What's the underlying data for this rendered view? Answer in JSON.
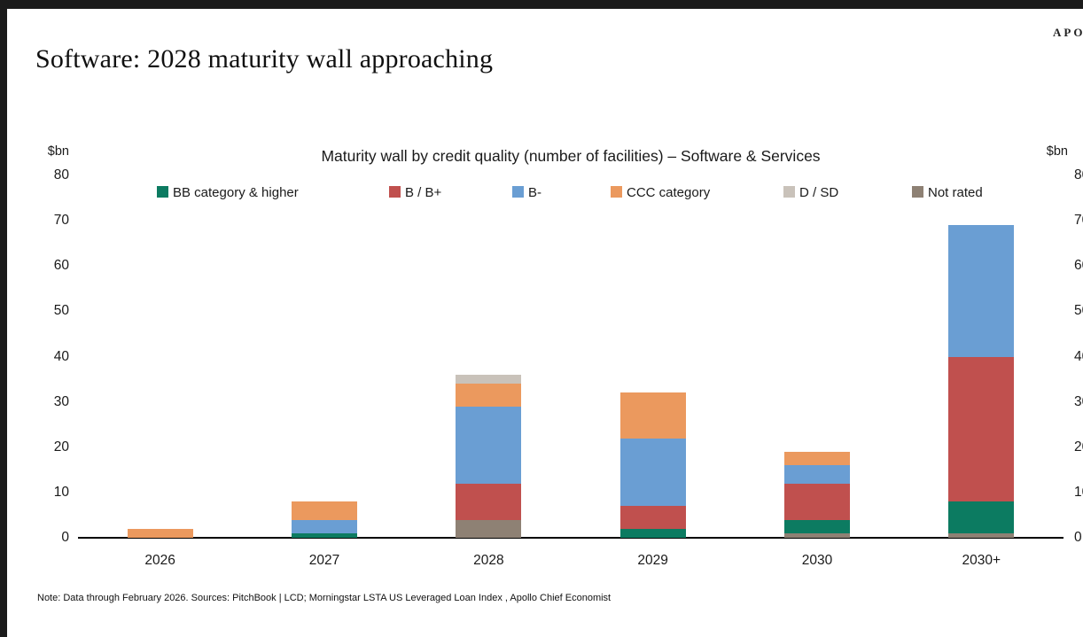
{
  "header": {
    "logo": "APOLLO",
    "title": "Software: 2028 maturity wall approaching"
  },
  "chart_data": {
    "type": "bar",
    "subtype": "stacked-vertical",
    "title": "Maturity wall by credit quality (number of facilities) – Software & Services",
    "unit_label": "$bn",
    "categories": [
      "2026",
      "2027",
      "2028",
      "2029",
      "2030",
      "2030+"
    ],
    "series": [
      {
        "name": "BB category & higher",
        "color": "#0c7b61",
        "values": [
          0,
          1,
          0,
          2,
          3,
          7
        ]
      },
      {
        "name": "B / B+",
        "color": "#c0504e",
        "values": [
          0,
          0,
          8,
          5,
          8,
          32
        ]
      },
      {
        "name": "B-",
        "color": "#6a9ed3",
        "values": [
          0,
          3,
          17,
          15,
          4,
          29
        ]
      },
      {
        "name": "CCC category",
        "color": "#eb995e",
        "values": [
          2,
          4,
          5,
          10,
          3,
          0
        ]
      },
      {
        "name": "D / SD",
        "color": "#c9c2ba",
        "values": [
          0,
          0,
          2,
          0,
          0,
          0
        ]
      },
      {
        "name": "Not rated",
        "color": "#8e8174",
        "values": [
          0,
          0,
          4,
          0,
          1,
          1
        ]
      }
    ],
    "stack_order_bottom_to_top": [
      "Not rated",
      "BB category & higher",
      "B / B+",
      "B-",
      "CCC category",
      "D / SD"
    ],
    "totals": [
      2,
      8,
      36,
      32,
      19,
      69
    ],
    "ylim": [
      0,
      80
    ],
    "yticks": [
      0,
      10,
      20,
      30,
      40,
      50,
      60,
      70,
      80
    ],
    "grid": false,
    "legend_position": "top",
    "axes": {
      "left_unit": "$bn",
      "right_unit": "$bn",
      "right_labels_clipped": true
    }
  },
  "footnote": "Note: Data through February 2026. Sources: PitchBook | LCD; Morningstar LSTA US Leveraged Loan Index , Apollo Chief Economist"
}
